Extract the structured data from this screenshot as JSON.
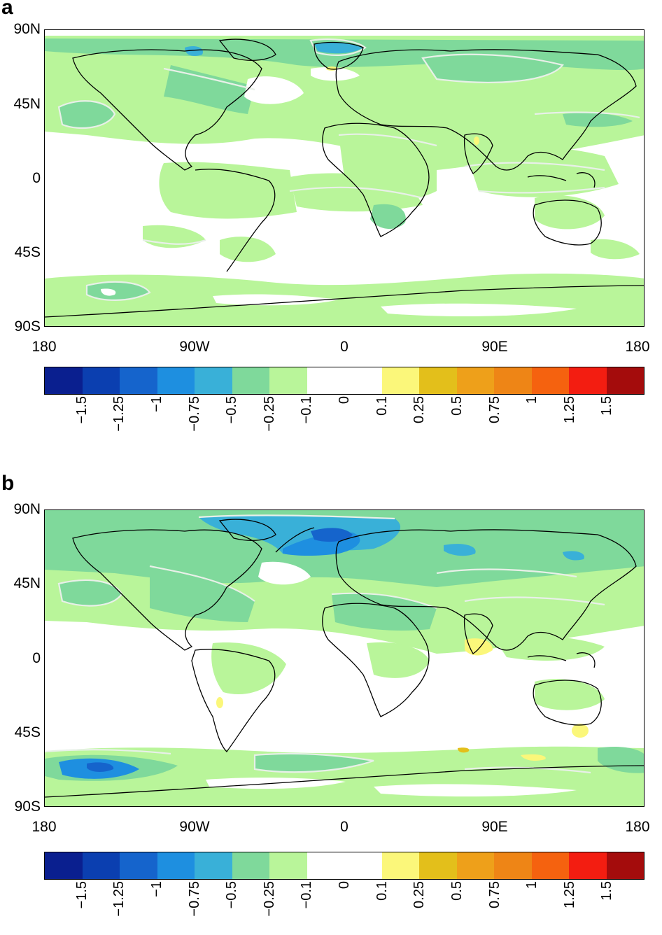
{
  "panels": [
    {
      "letter": "a",
      "lat_labels": [
        "90N",
        "45N",
        "0",
        "45S",
        "90S"
      ],
      "lon_labels": [
        "180",
        "90W",
        "0",
        "90E",
        "180"
      ],
      "colorbar_ticks": [
        "−1.5",
        "−1.25",
        "−1",
        "−0.75",
        "−0.5",
        "−0.25",
        "−0.1",
        "0",
        "0.1",
        "0.25",
        "0.5",
        "0.75",
        "1",
        "1.25",
        "1.5"
      ]
    },
    {
      "letter": "b",
      "lat_labels": [
        "90N",
        "45N",
        "0",
        "45S",
        "90S"
      ],
      "lon_labels": [
        "180",
        "90W",
        "0",
        "90E",
        "180"
      ],
      "colorbar_ticks": [
        "−1.5",
        "−1.25",
        "−1",
        "−0.75",
        "−0.5",
        "−0.25",
        "−0.1",
        "0",
        "0.1",
        "0.25",
        "0.5",
        "0.75",
        "1",
        "1.25",
        "1.5"
      ]
    }
  ],
  "colorbar_colors": [
    "#0a1f8f",
    "#0b3fb0",
    "#1564cc",
    "#1e8fe0",
    "#39b0d8",
    "#7fd99b",
    "#b9f59a",
    "#ffffff",
    "#ffffff",
    "#fbf77a",
    "#e3bf1b",
    "#eea01a",
    "#ee8516",
    "#f5620f",
    "#f31d11",
    "#a40c0c"
  ],
  "colors": {
    "land_outline": "#000000",
    "contour_outline": "#e8f0e8",
    "light_green": "#b9f59a",
    "mid_green": "#7fd99b",
    "light_blue": "#39b0d8",
    "blue": "#1e8fe0",
    "dark_blue": "#1564cc",
    "yellow": "#fbf77a",
    "gold": "#e3bf1b"
  }
}
